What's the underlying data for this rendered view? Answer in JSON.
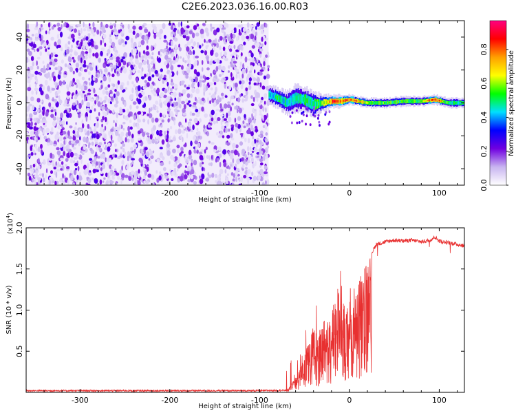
{
  "title": "C2E6.2023.036.16.00.R03",
  "chart_data": [
    {
      "type": "heatmap",
      "xlabel": "Height of straight line (km)",
      "ylabel": "Frequency (Hz)",
      "xlim": [
        -360,
        128
      ],
      "ylim": [
        -50,
        50
      ],
      "x_ticks": [
        -300,
        -200,
        -100,
        0,
        100
      ],
      "y_ticks": [
        -40,
        -20,
        0,
        20,
        40
      ],
      "noise_region": {
        "x_from": -360,
        "x_to": -90,
        "y_from": -50,
        "y_to": 48
      },
      "signal_band": [
        {
          "x": -90,
          "y": 5,
          "halfwidth": 6,
          "amp": 0.45
        },
        {
          "x": -80,
          "y": 3,
          "halfwidth": 6,
          "amp": 0.5
        },
        {
          "x": -70,
          "y": 0,
          "halfwidth": 7,
          "amp": 0.45
        },
        {
          "x": -60,
          "y": 3,
          "halfwidth": 8,
          "amp": 0.5
        },
        {
          "x": -50,
          "y": 2,
          "halfwidth": 8,
          "amp": 0.5
        },
        {
          "x": -40,
          "y": -1,
          "halfwidth": 8,
          "amp": 0.5
        },
        {
          "x": -30,
          "y": 0,
          "halfwidth": 5,
          "amp": 0.6
        },
        {
          "x": -20,
          "y": 1,
          "halfwidth": 4,
          "amp": 0.85
        },
        {
          "x": -10,
          "y": 1,
          "halfwidth": 4,
          "amp": 0.8
        },
        {
          "x": 0,
          "y": 2,
          "halfwidth": 3,
          "amp": 0.85
        },
        {
          "x": 20,
          "y": 0,
          "halfwidth": 3,
          "amp": 0.6
        },
        {
          "x": 40,
          "y": 0,
          "halfwidth": 3,
          "amp": 0.55
        },
        {
          "x": 60,
          "y": 1,
          "halfwidth": 3,
          "amp": 0.55
        },
        {
          "x": 80,
          "y": 1,
          "halfwidth": 3,
          "amp": 0.55
        },
        {
          "x": 95,
          "y": 2,
          "halfwidth": 3,
          "amp": 0.9
        },
        {
          "x": 110,
          "y": 0,
          "halfwidth": 3,
          "amp": 0.5
        },
        {
          "x": 128,
          "y": 0,
          "halfwidth": 3,
          "amp": 0.5
        }
      ],
      "colorbar": {
        "label": "Normalized spectral amplitude",
        "range": [
          0,
          0.97
        ],
        "ticks": [
          0.0,
          0.2,
          0.4,
          0.6,
          0.8
        ],
        "tick_labels": [
          "0.0",
          "0.2",
          "0.4",
          "0.6",
          "0.8"
        ],
        "colors": [
          "#ffffff",
          "#c8b4f0",
          "#7000e0",
          "#0000ff",
          "#00e0ff",
          "#00ff00",
          "#ffff00",
          "#ffa000",
          "#ff0000",
          "#ff0080"
        ]
      },
      "grid": false
    },
    {
      "type": "line",
      "xlabel": "Height of straight line (km)",
      "ylabel": "SNR (10 * v/v)",
      "multiplier": "(x10",
      "multiplier_exp": "4",
      "multiplier_close": ")",
      "xlim": [
        -360,
        128
      ],
      "ylim": [
        0,
        20000
      ],
      "x_ticks": [
        -300,
        -200,
        -100,
        0,
        100
      ],
      "y_ticks": [
        5000,
        10000,
        15000,
        20000
      ],
      "y_tick_labels": [
        "0.5",
        "1.0",
        "1.5",
        "2.0"
      ],
      "series": [
        {
          "color": "#e83030",
          "x": [
            -360,
            -100,
            -70,
            -62,
            -55,
            -50,
            -45,
            -40,
            -35,
            -30,
            -25,
            -20,
            -15,
            -12,
            -10,
            -5,
            0,
            5,
            10,
            15,
            20,
            25,
            30,
            40,
            50,
            60,
            70,
            80,
            90,
            95,
            100,
            110,
            120,
            128
          ],
          "y": [
            200,
            200,
            250,
            1500,
            3000,
            5000,
            6500,
            8000,
            7000,
            9000,
            8500,
            10000,
            12000,
            14000,
            15000,
            12000,
            11000,
            13000,
            14000,
            15000,
            15500,
            17000,
            18000,
            18300,
            18500,
            18400,
            18500,
            18300,
            18500,
            18900,
            18400,
            18200,
            18000,
            17800
          ]
        }
      ],
      "grid": false
    }
  ]
}
